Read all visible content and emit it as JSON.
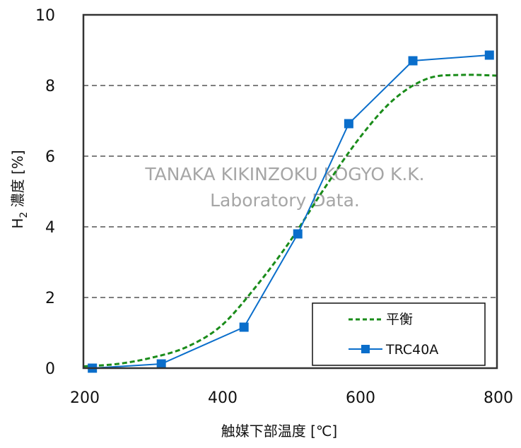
{
  "chart_data": {
    "type": "line",
    "title": "",
    "xlabel": "触媒下部温度 [℃]",
    "ylabel_main": "H",
    "ylabel_sub": "2",
    "ylabel_rest": " 濃度 [%]",
    "ylabel": "H2 濃度 [%]",
    "xlim": [
      200,
      800
    ],
    "ylim": [
      0,
      10
    ],
    "x_ticks": [
      "200",
      "400",
      "600",
      "800"
    ],
    "y_ticks": [
      "0",
      "2",
      "4",
      "6",
      "8",
      "10"
    ],
    "grid": "horizontal dashed at 2, 4, 6, 8",
    "legend_position": "lower right, inside plot",
    "watermark": [
      "TANAKA KIKINZOKU KOGYO K.K.",
      "Laboratory Data."
    ],
    "series": [
      {
        "name": "平衡",
        "style": "dashed line",
        "color": "#1a8c1a",
        "x": [
          200,
          250,
          300,
          350,
          400,
          450,
          500,
          550,
          600,
          650,
          700,
          750,
          800
        ],
        "y": [
          0.05,
          0.12,
          0.3,
          0.6,
          1.2,
          2.3,
          3.6,
          5.1,
          6.5,
          7.6,
          8.2,
          8.3,
          8.28
        ]
      },
      {
        "name": "TRC40A",
        "style": "solid line with square markers",
        "color": "#0a6ecb",
        "x": [
          213,
          313,
          433,
          511,
          585,
          678,
          789
        ],
        "y": [
          0.0,
          0.12,
          1.16,
          3.8,
          6.92,
          8.7,
          8.86
        ]
      }
    ]
  },
  "colors": {
    "equilibrium": "#1a8c1a",
    "trc40a": "#0a6ecb",
    "grid": "#555555",
    "axis": "#333333",
    "watermark": "#a6a6a6"
  }
}
